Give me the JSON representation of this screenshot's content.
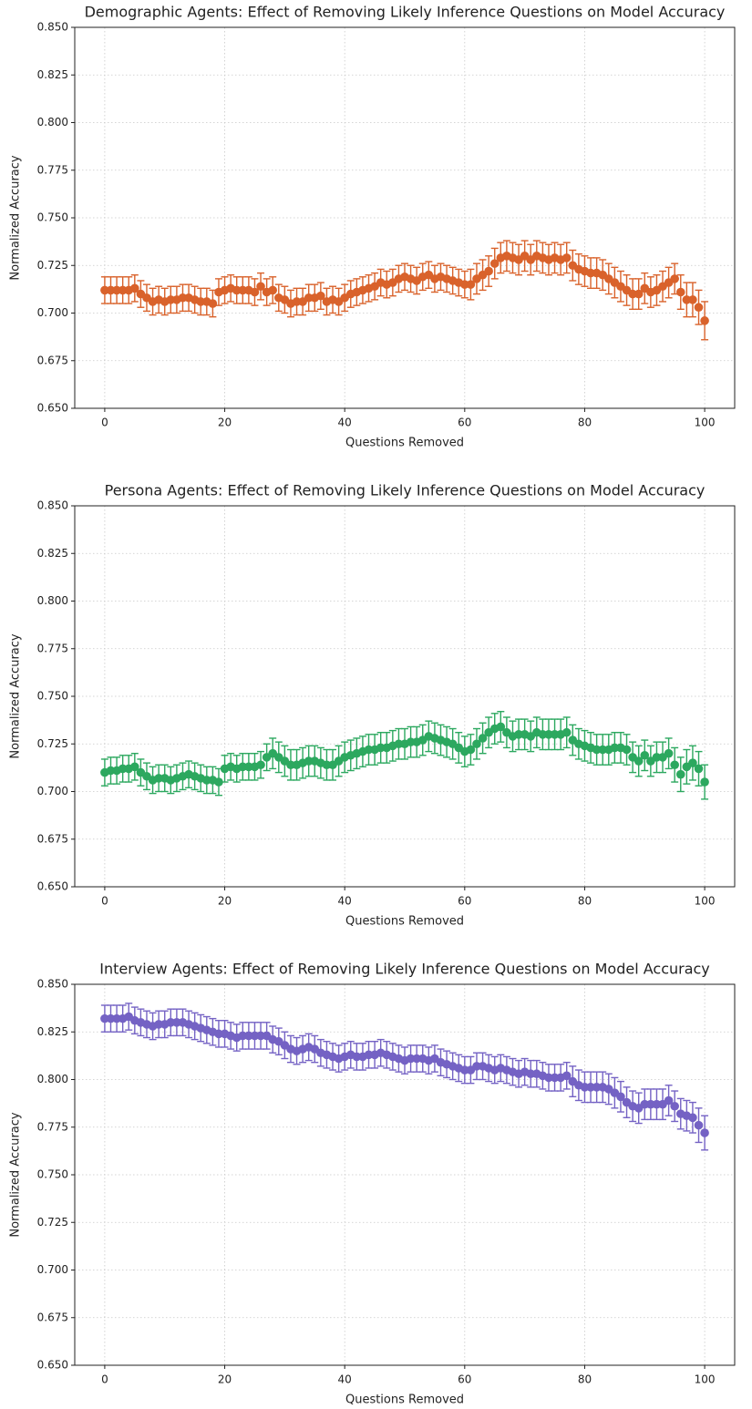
{
  "chart_data": [
    {
      "type": "errorbar",
      "title": "Demographic Agents: Effect of Removing Likely Inference Questions on Model Accuracy",
      "xlabel": "Questions Removed",
      "ylabel": "Normalized Accuracy",
      "color": "#d9622b",
      "grid": true,
      "xlim": [
        -5,
        105
      ],
      "xticks": [
        0,
        20,
        40,
        60,
        80,
        100
      ],
      "ylim": [
        0.65,
        0.85
      ],
      "yticks": [
        {
          "value": 0.65,
          "label": "0.650"
        },
        {
          "value": 0.675,
          "label": "0.675"
        },
        {
          "value": 0.7,
          "label": "0.700"
        },
        {
          "value": 0.725,
          "label": "0.725"
        },
        {
          "value": 0.75,
          "label": "0.750"
        },
        {
          "value": 0.775,
          "label": "0.775"
        },
        {
          "value": 0.8,
          "label": "0.800"
        },
        {
          "value": 0.825,
          "label": "0.825"
        },
        {
          "value": 0.85,
          "label": "0.850"
        }
      ],
      "x": [
        0,
        1,
        2,
        3,
        4,
        5,
        6,
        7,
        8,
        9,
        10,
        11,
        12,
        13,
        14,
        15,
        16,
        17,
        18,
        19,
        20,
        21,
        22,
        23,
        24,
        25,
        26,
        27,
        28,
        29,
        30,
        31,
        32,
        33,
        34,
        35,
        36,
        37,
        38,
        39,
        40,
        41,
        42,
        43,
        44,
        45,
        46,
        47,
        48,
        49,
        50,
        51,
        52,
        53,
        54,
        55,
        56,
        57,
        58,
        59,
        60,
        61,
        62,
        63,
        64,
        65,
        66,
        67,
        68,
        69,
        70,
        71,
        72,
        73,
        74,
        75,
        76,
        77,
        78,
        79,
        80,
        81,
        82,
        83,
        84,
        85,
        86,
        87,
        88,
        89,
        90,
        91,
        92,
        93,
        94,
        95,
        96,
        97,
        98,
        99,
        100
      ],
      "values": [
        0.712,
        0.712,
        0.712,
        0.712,
        0.712,
        0.713,
        0.71,
        0.708,
        0.706,
        0.707,
        0.706,
        0.707,
        0.707,
        0.708,
        0.708,
        0.707,
        0.706,
        0.706,
        0.705,
        0.711,
        0.712,
        0.713,
        0.712,
        0.712,
        0.712,
        0.711,
        0.714,
        0.711,
        0.712,
        0.708,
        0.707,
        0.705,
        0.706,
        0.706,
        0.708,
        0.708,
        0.709,
        0.706,
        0.707,
        0.706,
        0.708,
        0.71,
        0.711,
        0.712,
        0.713,
        0.714,
        0.716,
        0.715,
        0.716,
        0.718,
        0.719,
        0.718,
        0.717,
        0.719,
        0.72,
        0.718,
        0.719,
        0.718,
        0.717,
        0.716,
        0.715,
        0.715,
        0.718,
        0.72,
        0.722,
        0.726,
        0.729,
        0.73,
        0.729,
        0.728,
        0.73,
        0.728,
        0.73,
        0.729,
        0.728,
        0.729,
        0.728,
        0.729,
        0.725,
        0.723,
        0.722,
        0.721,
        0.721,
        0.72,
        0.718,
        0.716,
        0.714,
        0.712,
        0.71,
        0.71,
        0.713,
        0.711,
        0.712,
        0.714,
        0.716,
        0.718,
        0.711,
        0.707,
        0.707,
        0.703,
        0.696
      ],
      "errors": [
        0.007,
        0.007,
        0.007,
        0.007,
        0.007,
        0.007,
        0.007,
        0.007,
        0.007,
        0.007,
        0.007,
        0.007,
        0.007,
        0.007,
        0.007,
        0.007,
        0.007,
        0.007,
        0.007,
        0.007,
        0.007,
        0.007,
        0.007,
        0.007,
        0.007,
        0.007,
        0.007,
        0.007,
        0.007,
        0.007,
        0.007,
        0.007,
        0.007,
        0.007,
        0.007,
        0.007,
        0.007,
        0.007,
        0.007,
        0.007,
        0.007,
        0.007,
        0.007,
        0.007,
        0.007,
        0.007,
        0.007,
        0.007,
        0.007,
        0.007,
        0.007,
        0.007,
        0.007,
        0.007,
        0.007,
        0.007,
        0.007,
        0.007,
        0.007,
        0.007,
        0.007,
        0.008,
        0.008,
        0.008,
        0.008,
        0.008,
        0.008,
        0.008,
        0.008,
        0.008,
        0.008,
        0.008,
        0.008,
        0.008,
        0.008,
        0.008,
        0.008,
        0.008,
        0.008,
        0.008,
        0.008,
        0.008,
        0.008,
        0.008,
        0.008,
        0.008,
        0.008,
        0.008,
        0.008,
        0.008,
        0.008,
        0.008,
        0.008,
        0.008,
        0.008,
        0.008,
        0.009,
        0.009,
        0.009,
        0.009,
        0.01
      ]
    },
    {
      "type": "errorbar",
      "title": "Persona Agents: Effect of Removing Likely Inference Questions on Model Accuracy",
      "xlabel": "Questions Removed",
      "ylabel": "Normalized Accuracy",
      "color": "#2ca85f",
      "grid": true,
      "xlim": [
        -5,
        105
      ],
      "xticks": [
        0,
        20,
        40,
        60,
        80,
        100
      ],
      "ylim": [
        0.65,
        0.85
      ],
      "yticks": [
        {
          "value": 0.65,
          "label": "0.650"
        },
        {
          "value": 0.675,
          "label": "0.675"
        },
        {
          "value": 0.7,
          "label": "0.700"
        },
        {
          "value": 0.725,
          "label": "0.725"
        },
        {
          "value": 0.75,
          "label": "0.750"
        },
        {
          "value": 0.775,
          "label": "0.775"
        },
        {
          "value": 0.8,
          "label": "0.800"
        },
        {
          "value": 0.825,
          "label": "0.825"
        },
        {
          "value": 0.85,
          "label": "0.850"
        }
      ],
      "x": [
        0,
        1,
        2,
        3,
        4,
        5,
        6,
        7,
        8,
        9,
        10,
        11,
        12,
        13,
        14,
        15,
        16,
        17,
        18,
        19,
        20,
        21,
        22,
        23,
        24,
        25,
        26,
        27,
        28,
        29,
        30,
        31,
        32,
        33,
        34,
        35,
        36,
        37,
        38,
        39,
        40,
        41,
        42,
        43,
        44,
        45,
        46,
        47,
        48,
        49,
        50,
        51,
        52,
        53,
        54,
        55,
        56,
        57,
        58,
        59,
        60,
        61,
        62,
        63,
        64,
        65,
        66,
        67,
        68,
        69,
        70,
        71,
        72,
        73,
        74,
        75,
        76,
        77,
        78,
        79,
        80,
        81,
        82,
        83,
        84,
        85,
        86,
        87,
        88,
        89,
        90,
        91,
        92,
        93,
        94,
        95,
        96,
        97,
        98,
        99,
        100
      ],
      "values": [
        0.71,
        0.711,
        0.711,
        0.712,
        0.712,
        0.713,
        0.71,
        0.708,
        0.706,
        0.707,
        0.707,
        0.706,
        0.707,
        0.708,
        0.709,
        0.708,
        0.707,
        0.706,
        0.706,
        0.705,
        0.712,
        0.713,
        0.712,
        0.713,
        0.713,
        0.713,
        0.714,
        0.718,
        0.72,
        0.718,
        0.716,
        0.714,
        0.714,
        0.715,
        0.716,
        0.716,
        0.715,
        0.714,
        0.714,
        0.716,
        0.718,
        0.719,
        0.72,
        0.721,
        0.722,
        0.722,
        0.723,
        0.723,
        0.724,
        0.725,
        0.725,
        0.726,
        0.726,
        0.727,
        0.729,
        0.728,
        0.727,
        0.726,
        0.725,
        0.723,
        0.721,
        0.722,
        0.725,
        0.728,
        0.731,
        0.733,
        0.734,
        0.731,
        0.729,
        0.73,
        0.73,
        0.729,
        0.731,
        0.73,
        0.73,
        0.73,
        0.73,
        0.731,
        0.727,
        0.725,
        0.724,
        0.723,
        0.722,
        0.722,
        0.722,
        0.723,
        0.723,
        0.722,
        0.718,
        0.716,
        0.719,
        0.716,
        0.718,
        0.718,
        0.72,
        0.714,
        0.709,
        0.713,
        0.715,
        0.712,
        0.705
      ],
      "errors": [
        0.007,
        0.007,
        0.007,
        0.007,
        0.007,
        0.007,
        0.007,
        0.007,
        0.007,
        0.007,
        0.007,
        0.007,
        0.007,
        0.007,
        0.007,
        0.007,
        0.007,
        0.007,
        0.007,
        0.007,
        0.007,
        0.007,
        0.007,
        0.007,
        0.007,
        0.007,
        0.007,
        0.007,
        0.008,
        0.008,
        0.008,
        0.008,
        0.008,
        0.008,
        0.008,
        0.008,
        0.008,
        0.008,
        0.008,
        0.008,
        0.008,
        0.008,
        0.008,
        0.008,
        0.008,
        0.008,
        0.008,
        0.008,
        0.008,
        0.008,
        0.008,
        0.008,
        0.008,
        0.008,
        0.008,
        0.008,
        0.008,
        0.008,
        0.008,
        0.008,
        0.008,
        0.008,
        0.008,
        0.008,
        0.008,
        0.008,
        0.008,
        0.008,
        0.008,
        0.008,
        0.008,
        0.008,
        0.008,
        0.008,
        0.008,
        0.008,
        0.008,
        0.008,
        0.008,
        0.008,
        0.008,
        0.008,
        0.008,
        0.008,
        0.008,
        0.008,
        0.008,
        0.008,
        0.008,
        0.008,
        0.008,
        0.008,
        0.008,
        0.008,
        0.008,
        0.009,
        0.009,
        0.009,
        0.009,
        0.009,
        0.009
      ]
    },
    {
      "type": "errorbar",
      "title": "Interview Agents: Effect of Removing Likely Inference Questions on Model Accuracy",
      "xlabel": "Questions Removed",
      "ylabel": "Normalized Accuracy",
      "color": "#7462c4",
      "grid": true,
      "xlim": [
        -5,
        105
      ],
      "xticks": [
        0,
        20,
        40,
        60,
        80,
        100
      ],
      "ylim": [
        0.65,
        0.85
      ],
      "yticks": [
        {
          "value": 0.65,
          "label": "0.650"
        },
        {
          "value": 0.675,
          "label": "0.675"
        },
        {
          "value": 0.7,
          "label": "0.700"
        },
        {
          "value": 0.725,
          "label": "0.725"
        },
        {
          "value": 0.75,
          "label": "0.750"
        },
        {
          "value": 0.775,
          "label": "0.775"
        },
        {
          "value": 0.8,
          "label": "0.800"
        },
        {
          "value": 0.825,
          "label": "0.825"
        },
        {
          "value": 0.85,
          "label": "0.850"
        }
      ],
      "x": [
        0,
        1,
        2,
        3,
        4,
        5,
        6,
        7,
        8,
        9,
        10,
        11,
        12,
        13,
        14,
        15,
        16,
        17,
        18,
        19,
        20,
        21,
        22,
        23,
        24,
        25,
        26,
        27,
        28,
        29,
        30,
        31,
        32,
        33,
        34,
        35,
        36,
        37,
        38,
        39,
        40,
        41,
        42,
        43,
        44,
        45,
        46,
        47,
        48,
        49,
        50,
        51,
        52,
        53,
        54,
        55,
        56,
        57,
        58,
        59,
        60,
        61,
        62,
        63,
        64,
        65,
        66,
        67,
        68,
        69,
        70,
        71,
        72,
        73,
        74,
        75,
        76,
        77,
        78,
        79,
        80,
        81,
        82,
        83,
        84,
        85,
        86,
        87,
        88,
        89,
        90,
        91,
        92,
        93,
        94,
        95,
        96,
        97,
        98,
        99,
        100
      ],
      "values": [
        0.832,
        0.832,
        0.832,
        0.832,
        0.833,
        0.831,
        0.83,
        0.829,
        0.828,
        0.829,
        0.829,
        0.83,
        0.83,
        0.83,
        0.829,
        0.828,
        0.827,
        0.826,
        0.825,
        0.824,
        0.824,
        0.823,
        0.822,
        0.823,
        0.823,
        0.823,
        0.823,
        0.823,
        0.821,
        0.82,
        0.818,
        0.816,
        0.815,
        0.816,
        0.817,
        0.816,
        0.814,
        0.813,
        0.812,
        0.811,
        0.812,
        0.813,
        0.812,
        0.812,
        0.813,
        0.813,
        0.814,
        0.813,
        0.812,
        0.811,
        0.81,
        0.811,
        0.811,
        0.811,
        0.81,
        0.811,
        0.809,
        0.808,
        0.807,
        0.806,
        0.805,
        0.805,
        0.807,
        0.807,
        0.806,
        0.805,
        0.806,
        0.805,
        0.804,
        0.803,
        0.804,
        0.803,
        0.803,
        0.802,
        0.801,
        0.801,
        0.801,
        0.802,
        0.799,
        0.797,
        0.796,
        0.796,
        0.796,
        0.796,
        0.795,
        0.793,
        0.791,
        0.788,
        0.786,
        0.785,
        0.787,
        0.787,
        0.787,
        0.787,
        0.789,
        0.786,
        0.782,
        0.781,
        0.78,
        0.776,
        0.772
      ],
      "errors": [
        0.007,
        0.007,
        0.007,
        0.007,
        0.007,
        0.007,
        0.007,
        0.007,
        0.007,
        0.007,
        0.007,
        0.007,
        0.007,
        0.007,
        0.007,
        0.007,
        0.007,
        0.007,
        0.007,
        0.007,
        0.007,
        0.007,
        0.007,
        0.007,
        0.007,
        0.007,
        0.007,
        0.007,
        0.007,
        0.007,
        0.007,
        0.007,
        0.007,
        0.007,
        0.007,
        0.007,
        0.007,
        0.007,
        0.007,
        0.007,
        0.007,
        0.007,
        0.007,
        0.007,
        0.007,
        0.007,
        0.007,
        0.007,
        0.007,
        0.007,
        0.007,
        0.007,
        0.007,
        0.007,
        0.007,
        0.007,
        0.007,
        0.007,
        0.007,
        0.007,
        0.007,
        0.007,
        0.007,
        0.007,
        0.007,
        0.007,
        0.007,
        0.007,
        0.007,
        0.007,
        0.007,
        0.007,
        0.007,
        0.007,
        0.007,
        0.007,
        0.007,
        0.007,
        0.008,
        0.008,
        0.008,
        0.008,
        0.008,
        0.008,
        0.008,
        0.008,
        0.008,
        0.008,
        0.008,
        0.008,
        0.008,
        0.008,
        0.008,
        0.008,
        0.008,
        0.008,
        0.008,
        0.008,
        0.008,
        0.009,
        0.009
      ]
    }
  ]
}
